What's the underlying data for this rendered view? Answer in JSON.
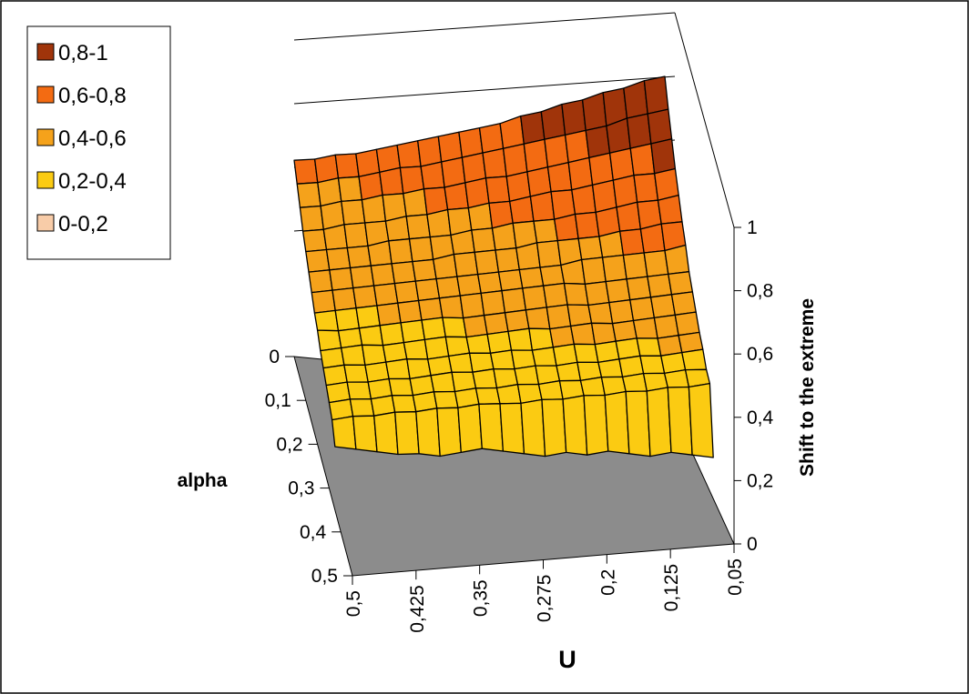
{
  "chart_data": {
    "type": "surface",
    "title": "",
    "xlabel": "U",
    "ylabel": "alpha",
    "zlabel": "Shift to the extreme",
    "x_ticks": [
      "0,5",
      "0,425",
      "0,35",
      "0,275",
      "0,2",
      "0,125",
      "0,05"
    ],
    "y_ticks": [
      "0",
      "0,1",
      "0,2",
      "0,3",
      "0,4",
      "0,5"
    ],
    "z_ticks": [
      "0",
      "0,2",
      "0,4",
      "0,6",
      "0,8",
      "1"
    ],
    "x_range": [
      0.5,
      0.05
    ],
    "y_range": [
      0,
      0.5
    ],
    "z_range": [
      0,
      1
    ],
    "u_values": [
      0.5,
      0.475,
      0.45,
      0.425,
      0.4,
      0.375,
      0.35,
      0.325,
      0.3,
      0.275,
      0.25,
      0.225,
      0.2,
      0.175,
      0.15,
      0.125,
      0.1,
      0.075,
      0.05
    ],
    "alpha_values": [
      0,
      0.025,
      0.05,
      0.075,
      0.1,
      0.125,
      0.15,
      0.175,
      0.2,
      0.225,
      0.25,
      0.275,
      0.3,
      0.325,
      0.35
    ],
    "z_rows": [
      [
        0.62,
        0.63,
        0.65,
        0.66,
        0.68,
        0.7,
        0.72,
        0.74,
        0.76,
        0.78,
        0.8,
        0.83,
        0.85,
        0.88,
        0.9,
        0.93,
        0.95,
        0.98,
        1.0
      ],
      [
        0.58,
        0.59,
        0.61,
        0.62,
        0.64,
        0.66,
        0.67,
        0.69,
        0.71,
        0.73,
        0.75,
        0.77,
        0.79,
        0.81,
        0.83,
        0.85,
        0.88,
        0.9,
        0.92
      ],
      [
        0.54,
        0.55,
        0.57,
        0.58,
        0.6,
        0.61,
        0.63,
        0.64,
        0.66,
        0.68,
        0.69,
        0.71,
        0.73,
        0.75,
        0.77,
        0.79,
        0.81,
        0.83,
        0.85
      ],
      [
        0.5,
        0.51,
        0.53,
        0.54,
        0.55,
        0.57,
        0.58,
        0.6,
        0.61,
        0.63,
        0.64,
        0.66,
        0.68,
        0.69,
        0.71,
        0.73,
        0.75,
        0.76,
        0.78
      ],
      [
        0.47,
        0.48,
        0.49,
        0.5,
        0.52,
        0.53,
        0.54,
        0.55,
        0.57,
        0.58,
        0.6,
        0.61,
        0.62,
        0.64,
        0.65,
        0.67,
        0.69,
        0.7,
        0.72
      ],
      [
        0.44,
        0.45,
        0.46,
        0.47,
        0.48,
        0.49,
        0.5,
        0.52,
        0.53,
        0.54,
        0.55,
        0.57,
        0.58,
        0.59,
        0.6,
        0.62,
        0.63,
        0.65,
        0.66
      ],
      [
        0.41,
        0.42,
        0.43,
        0.44,
        0.45,
        0.46,
        0.47,
        0.48,
        0.49,
        0.5,
        0.51,
        0.52,
        0.53,
        0.55,
        0.56,
        0.57,
        0.58,
        0.59,
        0.61
      ],
      [
        0.38,
        0.39,
        0.4,
        0.41,
        0.42,
        0.43,
        0.44,
        0.45,
        0.46,
        0.47,
        0.48,
        0.49,
        0.5,
        0.5,
        0.51,
        0.52,
        0.53,
        0.54,
        0.55
      ],
      [
        0.36,
        0.36,
        0.37,
        0.38,
        0.39,
        0.4,
        0.41,
        0.41,
        0.42,
        0.43,
        0.44,
        0.45,
        0.46,
        0.46,
        0.47,
        0.48,
        0.49,
        0.5,
        0.51
      ],
      [
        0.33,
        0.34,
        0.35,
        0.35,
        0.36,
        0.37,
        0.38,
        0.38,
        0.39,
        0.4,
        0.41,
        0.41,
        0.42,
        0.43,
        0.43,
        0.44,
        0.45,
        0.46,
        0.47
      ],
      [
        0.31,
        0.32,
        0.32,
        0.33,
        0.34,
        0.34,
        0.35,
        0.36,
        0.36,
        0.37,
        0.37,
        0.38,
        0.39,
        0.39,
        0.4,
        0.41,
        0.41,
        0.42,
        0.43
      ],
      [
        0.29,
        0.3,
        0.3,
        0.31,
        0.31,
        0.32,
        0.33,
        0.33,
        0.34,
        0.34,
        0.35,
        0.35,
        0.36,
        0.36,
        0.37,
        0.38,
        0.38,
        0.39,
        0.4
      ],
      [
        0.27,
        0.28,
        0.28,
        0.29,
        0.29,
        0.3,
        0.3,
        0.31,
        0.31,
        0.32,
        0.32,
        0.33,
        0.33,
        0.34,
        0.34,
        0.35,
        0.35,
        0.36,
        0.36
      ],
      [
        0.25,
        0.26,
        0.26,
        0.27,
        0.27,
        0.28,
        0.28,
        0.29,
        0.29,
        0.29,
        0.3,
        0.3,
        0.31,
        0.31,
        0.32,
        0.32,
        0.33,
        0.33,
        0.34
      ],
      [
        0.2,
        0.19,
        0.18,
        0.17,
        0.17,
        0.16,
        0.17,
        0.18,
        0.17,
        0.16,
        0.15,
        0.16,
        0.15,
        0.16,
        0.15,
        0.14,
        0.15,
        0.14,
        0.13
      ]
    ],
    "legend": [
      {
        "label": "0,8-1",
        "color": "#A0340A"
      },
      {
        "label": "0,6-0,8",
        "color": "#F36B12"
      },
      {
        "label": "0,4-0,6",
        "color": "#F5A21B"
      },
      {
        "label": "0,2-0,4",
        "color": "#FBCB12"
      },
      {
        "label": "0-0,2",
        "color": "#F8CCA8"
      }
    ],
    "legend_position": "top-left",
    "floor_color": "#8C8C8C",
    "mesh_color": "#000000"
  }
}
